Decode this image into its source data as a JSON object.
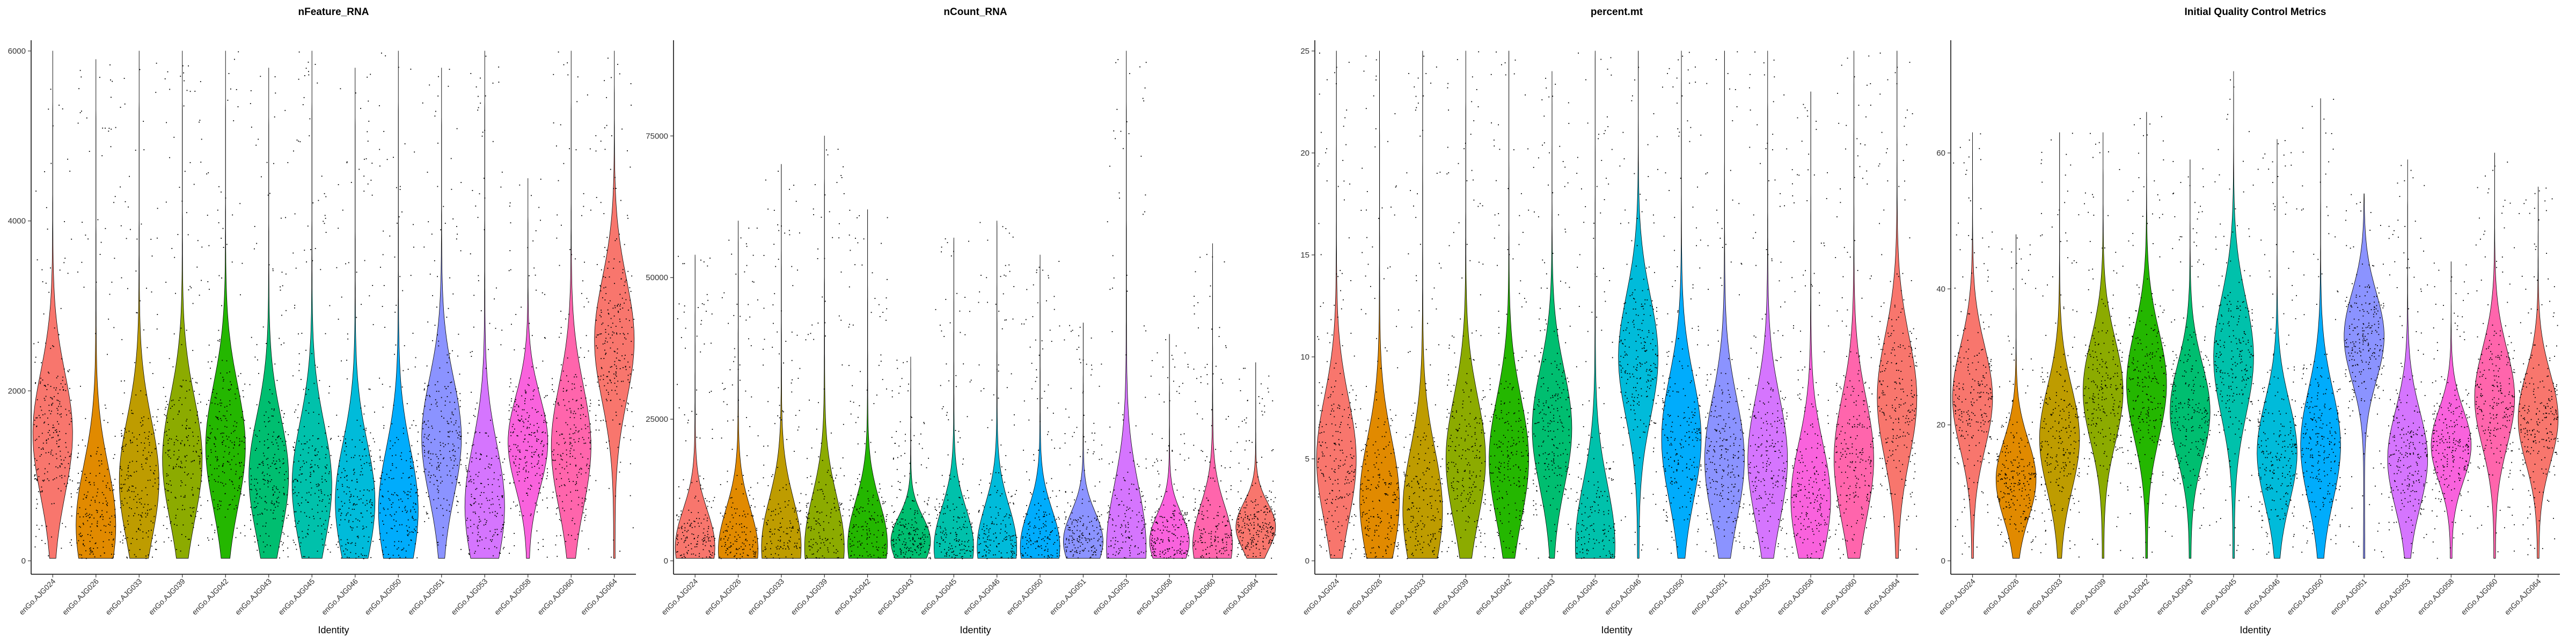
{
  "identities": [
    "enGo.AJG024",
    "enGo.AJG026",
    "enGo.AJG033",
    "enGo.AJG039",
    "enGo.AJG042",
    "enGo.AJG043",
    "enGo.AJG045",
    "enGo.AJG046",
    "enGo.AJG050",
    "enGo.AJG051",
    "enGo.AJG053",
    "enGo.AJG058",
    "enGo.AJG060",
    "enGo.AJG064"
  ],
  "colors": [
    "#F8766D",
    "#E18A00",
    "#BE9C00",
    "#8CAB00",
    "#24B700",
    "#00BE70",
    "#00C1AB",
    "#00BBDA",
    "#00ACFC",
    "#8B93FF",
    "#D575FE",
    "#F962DD",
    "#FF65AC",
    "#F8766D"
  ],
  "chart_data": [
    {
      "type": "violin",
      "title": "nFeature_RNA",
      "xlabel": "Identity",
      "ylabel": "",
      "ylim": [
        0,
        6000
      ],
      "yticks": [
        0,
        2000,
        4000,
        6000
      ],
      "medians": [
        1500,
        420,
        950,
        1200,
        1350,
        1000,
        900,
        700,
        600,
        1450,
        650,
        1400,
        1350,
        2600
      ],
      "max": [
        6000,
        5900,
        6000,
        6000,
        6000,
        5800,
        6000,
        5800,
        6000,
        5800,
        6000,
        4500,
        6000,
        6000
      ]
    },
    {
      "type": "violin",
      "title": "nCount_RNA",
      "xlabel": "Identity",
      "ylabel": "",
      "ylim": [
        0,
        90000
      ],
      "yticks": [
        0,
        25000,
        50000,
        75000
      ],
      "medians": [
        2500,
        2000,
        2500,
        2500,
        3000,
        3500,
        2500,
        2500,
        2500,
        3500,
        2500,
        3500,
        3000,
        6000
      ],
      "max": [
        54000,
        60000,
        70000,
        75000,
        62000,
        36000,
        57000,
        60000,
        54000,
        42000,
        90000,
        40000,
        56000,
        35000
      ]
    },
    {
      "type": "violin",
      "title": "percent.mt",
      "xlabel": "Identity",
      "ylabel": "",
      "ylim": [
        0,
        25
      ],
      "yticks": [
        0,
        5,
        10,
        15,
        20,
        25
      ],
      "medians": [
        5,
        3,
        2.5,
        5,
        5,
        6.5,
        0.8,
        10,
        6,
        5,
        5,
        3,
        5,
        8
      ],
      "max": [
        25,
        25,
        25,
        25,
        25,
        24,
        25,
        25,
        25,
        25,
        25,
        23,
        25,
        25
      ]
    },
    {
      "type": "violin",
      "title": "Initial Quality Control Metrics",
      "xlabel": "Identity",
      "ylabel": "",
      "ylim": [
        0,
        75
      ],
      "yticks": [
        0,
        20,
        40,
        60
      ],
      "medians": [
        24,
        12,
        18,
        25,
        26,
        22,
        30,
        16,
        17,
        33,
        15,
        17,
        24,
        21
      ],
      "max": [
        63,
        48,
        63,
        63,
        66,
        59,
        72,
        62,
        68,
        54,
        59,
        44,
        60,
        55
      ]
    }
  ]
}
